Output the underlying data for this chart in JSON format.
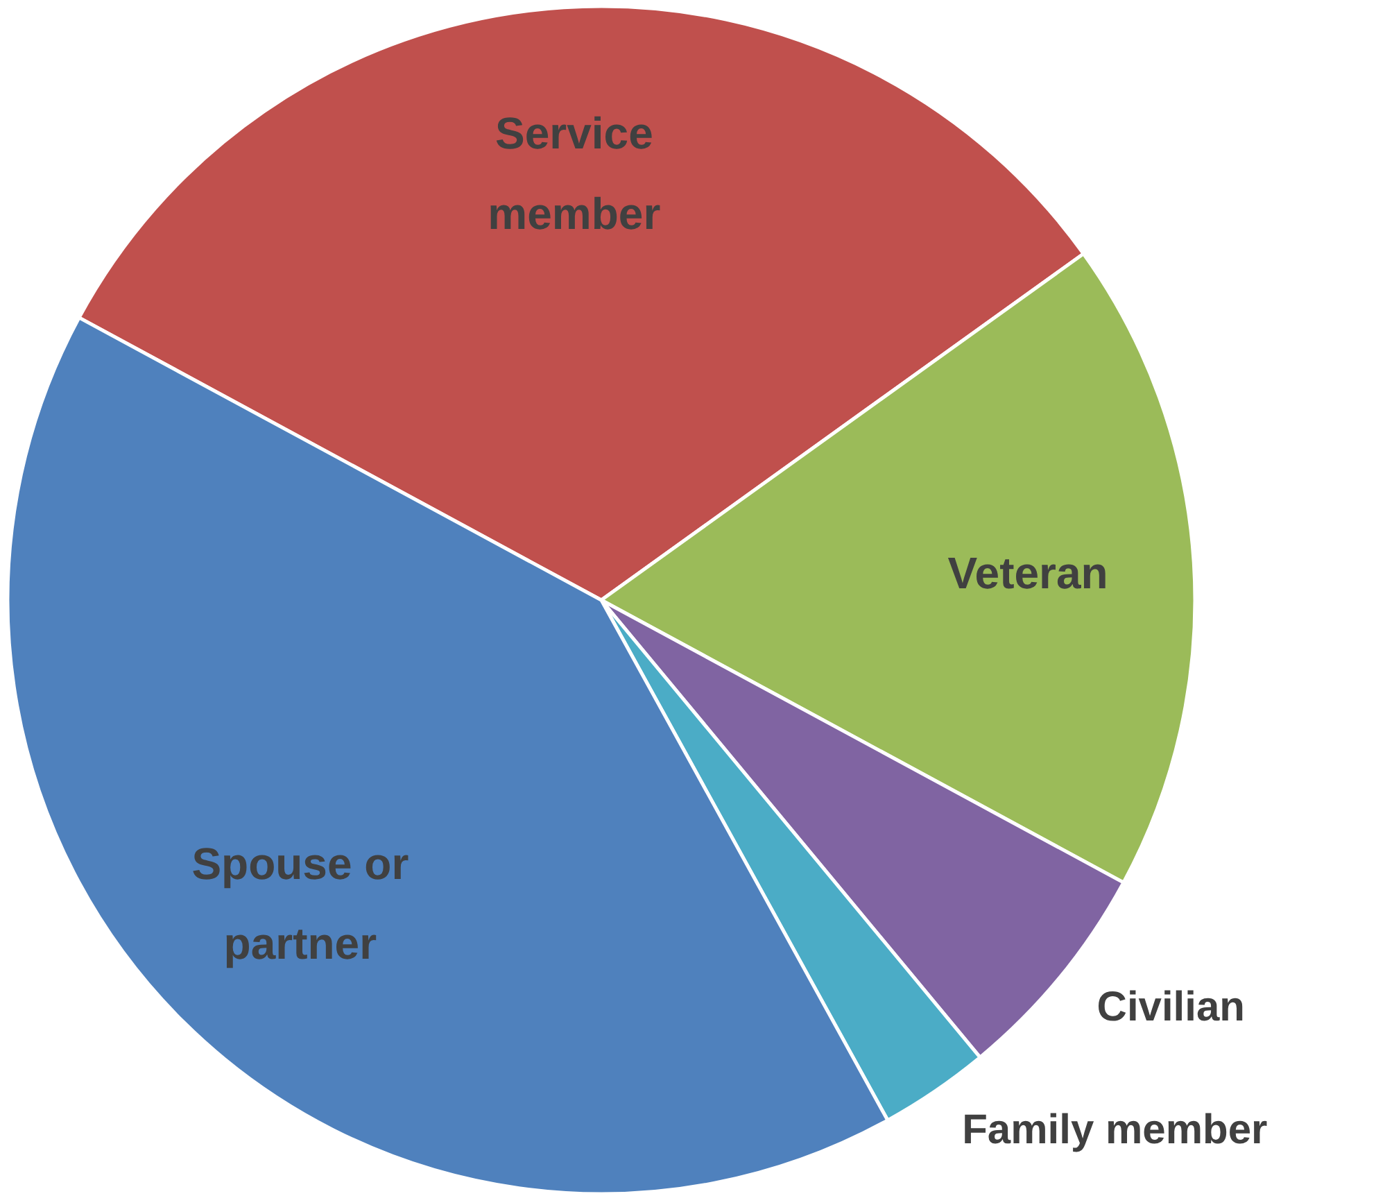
{
  "chart_data": {
    "type": "pie",
    "categories": [
      "Service member",
      "Veteran",
      "Civilian",
      "Family member",
      "Spouse or partner"
    ],
    "values": [
      32.2,
      17.8,
      6.1,
      3.0,
      40.9
    ],
    "colors": [
      "#c0504d",
      "#9bbb59",
      "#8064a2",
      "#4bacc6",
      "#4f81bd"
    ]
  }
}
